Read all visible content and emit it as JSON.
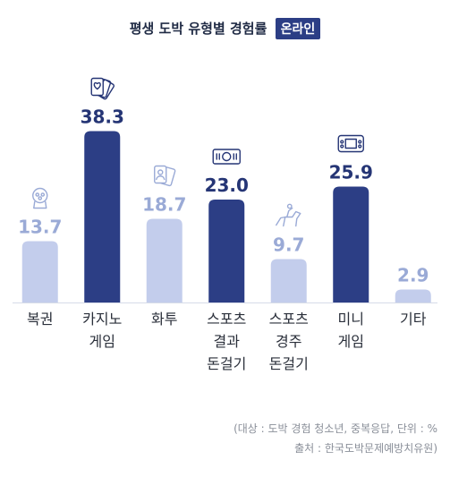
{
  "title": {
    "main": "평생 도박 유형별 경험률",
    "badge": "온라인"
  },
  "chart_data": {
    "type": "bar",
    "categories": [
      "복권",
      "카지노\n게임",
      "화투",
      "스포츠\n결과\n돈걸기",
      "스포츠\n경주\n돈걸기",
      "미니\n게임",
      "기타"
    ],
    "values": [
      13.7,
      38.3,
      18.7,
      23.0,
      9.7,
      25.9,
      2.9
    ],
    "value_labels": [
      "13.7",
      "38.3",
      "18.7",
      "23.0",
      "9.7",
      "25.9",
      "2.9"
    ],
    "highlight": [
      false,
      true,
      false,
      true,
      false,
      true,
      false
    ],
    "icons": [
      "gumball-machine-icon",
      "playing-cards-icon",
      "hwatu-cards-icon",
      "sports-ticket-icon",
      "horse-racing-icon",
      "arcade-game-icon",
      ""
    ],
    "ylim": [
      0,
      40
    ],
    "colors": {
      "dark": "#2c3e85",
      "light": "#c3cdec",
      "label_dark": "#253575",
      "label_light": "#9aaad6"
    }
  },
  "notes": {
    "line1": "(대상 : 도박 경험 청소년, 중복응답, 단위 : %",
    "line2": "출처 : 한국도박문제예방치유원)"
  }
}
